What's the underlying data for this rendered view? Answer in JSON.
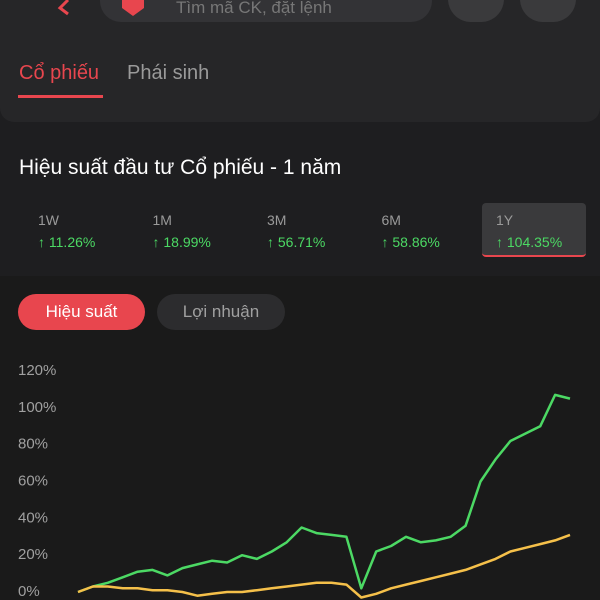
{
  "header": {
    "search_placeholder": "Tìm mã CK, đặt lệnh"
  },
  "tabs": [
    "Cổ phiếu",
    "Phái sinh"
  ],
  "section_title": "Hiệu suất đầu tư Cổ phiếu - 1 năm",
  "periods": [
    {
      "label": "1W",
      "value": "↑ 11.26%"
    },
    {
      "label": "1M",
      "value": "↑ 18.99%"
    },
    {
      "label": "3M",
      "value": "↑ 56.71%"
    },
    {
      "label": "6M",
      "value": "↑ 58.86%"
    },
    {
      "label": "1Y",
      "value": "↑ 104.35%"
    }
  ],
  "toggles": [
    "Hiệu suất",
    "Lợi nhuận"
  ],
  "chart_data": {
    "type": "line",
    "series": [
      {
        "color": "#4cd964",
        "values": [
          0,
          3,
          5,
          8,
          11,
          12,
          9,
          13,
          15,
          17,
          16,
          20,
          18,
          22,
          27,
          35,
          32,
          31,
          30,
          2,
          22,
          25,
          30,
          27,
          28,
          30,
          36,
          60,
          72,
          82,
          86,
          90,
          107,
          105
        ]
      },
      {
        "color": "#f5c04a",
        "values": [
          0,
          3,
          3,
          2,
          2,
          1,
          1,
          0,
          -2,
          -1,
          0,
          0,
          1,
          2,
          3,
          4,
          5,
          5,
          4,
          -3,
          -1,
          2,
          4,
          6,
          8,
          10,
          12,
          15,
          18,
          22,
          24,
          26,
          28,
          31
        ]
      }
    ],
    "ylim": [
      -4,
      120
    ],
    "yticks": [
      {
        "value": 0,
        "label": "0%"
      },
      {
        "value": 20,
        "label": "20%"
      },
      {
        "value": 40,
        "label": "40%"
      },
      {
        "value": 60,
        "label": "60%"
      },
      {
        "value": 80,
        "label": "80%"
      },
      {
        "value": 100,
        "label": "100%"
      },
      {
        "value": 120,
        "label": "120%"
      }
    ]
  }
}
